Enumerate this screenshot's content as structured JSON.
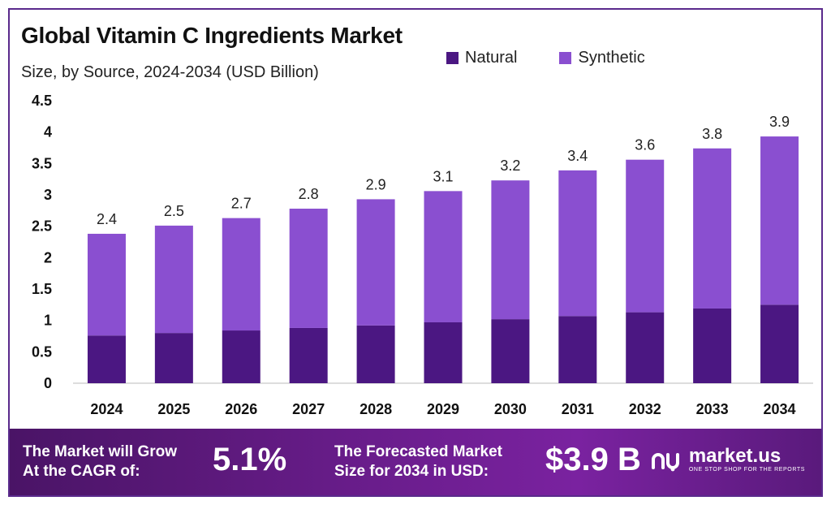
{
  "header": {
    "title": "Global Vitamin C Ingredients Market",
    "subtitle": "Size, by Source, 2024-2034 (USD Billion)"
  },
  "legend": [
    {
      "label": "Natural",
      "color": "#4b1782"
    },
    {
      "label": "Synthetic",
      "color": "#8a4fd0"
    }
  ],
  "chart_data": {
    "type": "bar",
    "stacked": true,
    "title": "Global Vitamin C Ingredients Market",
    "subtitle": "Size, by Source, 2024-2034 (USD Billion)",
    "xlabel": "",
    "ylabel": "",
    "ylim": [
      0,
      4.5
    ],
    "yticks": [
      "0",
      "0.5",
      "1",
      "1.5",
      "2",
      "2.5",
      "3",
      "3.5",
      "4",
      "4.5"
    ],
    "categories": [
      "2024",
      "2025",
      "2026",
      "2027",
      "2028",
      "2029",
      "2030",
      "2031",
      "2032",
      "2033",
      "2034"
    ],
    "series": [
      {
        "name": "Natural",
        "color": "#4b1782",
        "values": [
          0.76,
          0.8,
          0.84,
          0.88,
          0.92,
          0.97,
          1.02,
          1.07,
          1.13,
          1.19,
          1.25
        ]
      },
      {
        "name": "Synthetic",
        "color": "#8a4fd0",
        "values": [
          1.62,
          1.71,
          1.79,
          1.9,
          2.01,
          2.09,
          2.21,
          2.32,
          2.43,
          2.55,
          2.68
        ]
      }
    ],
    "totals": [
      "2.4",
      "2.5",
      "2.7",
      "2.8",
      "2.9",
      "3.1",
      "3.2",
      "3.4",
      "3.6",
      "3.8",
      "3.9"
    ],
    "grid": false,
    "legend_position": "top-right"
  },
  "banner": {
    "cagr_label_line1": "The Market will Grow",
    "cagr_label_line2": "At the CAGR of:",
    "cagr_value": "5.1%",
    "forecast_label_line1": "The Forecasted Market",
    "forecast_label_line2": "Size for 2034 in USD:",
    "forecast_value": "$3.9 B",
    "brand_name": "market.us",
    "brand_tagline": "ONE STOP SHOP FOR THE REPORTS"
  }
}
